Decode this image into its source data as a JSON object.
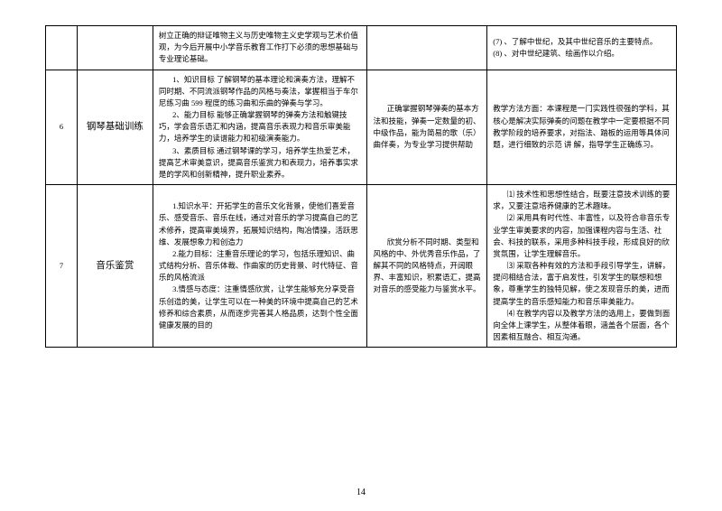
{
  "pageNumber": "14",
  "rows": [
    {
      "num": "",
      "name": "",
      "goal": "树立正确的辩证唯物主义与历史唯物主义史学观与艺术价值观，为今后开展中小学音乐教育工作打下必须的思想基础与专业理论基础。",
      "points": "",
      "method_parts": [
        "(7) 、了解中世纪，及其中世纪音乐的主要特点。",
        "(8) 、对中世纪建筑、绘画作以介绍。"
      ]
    },
    {
      "num": "6",
      "name": "钢琴基础训练",
      "goal_parts": [
        "1、知识目标 了解钢琴的基本理论和演奏方法，理解不同时期、不同流派钢琴作品的风格与奏法，掌握相当于车尔尼练习曲 599 程度的练习曲和乐曲的弹奏与学习。",
        "2、能力目标 能够正确掌握钢琴的弹奏方法和触键技巧，学会音乐语汇和内涵，提高音乐表现力和音乐审美能力，培养学生的读谱能力和初级演奏能力。",
        "3、素质目标 通过钢琴课的学习，培养学生热爱艺术，提高艺术审美意识，提高音乐鉴赏力和表现力，培养事实求是的学风和创新精神，提升职业素养。"
      ],
      "points": "正确掌握钢琴弹奏的基本方法和技能，弹奏一定数量的初、中级作品，能为简易的歌（乐）曲伴奏，为专业学习提供帮助",
      "method": "教学方法方面：本课程是一门实践性很强的学科，其核心是解决实际弹奏的问题在教学中一定要根据不同教学阶段的培养要求，对指法、踏板的运用等具体问题，进行细致的示范 讲 解，指导学生正确练习。"
    },
    {
      "num": "7",
      "name": "音乐鉴赏",
      "goal_parts": [
        "1.知识水平：开拓学生的音乐文化背景，使他们喜爱音乐、感受音乐、音乐在线，通过对音乐的学习提高自己的艺术修养，提高审美境界，拓展知识结构，陶冶情操，活跃思维、发展想象力和创造力",
        "2.能力目标：注重音乐理论的学习，包括乐理知识、曲式结构分析、音乐体裁、作曲家的历史背景、时代特征、音乐的风格流派",
        "3.情感与态度：注重情感欣赏，让学生能够充分享受音乐创造的美，让学生可以在一种美的环境中提高自己的艺术修养和综合素质，从而逐步完善其人格品质，达到个性全面健康发展的目的"
      ],
      "points": "欣赏分析不同时期、类型和风格的中、外优秀音乐作品，了解其不同的风格特点，开阔眼界、丰富知识，积累语汇，提高对音乐的感受能力与鉴赏水平。",
      "method_parts": [
        "⑴ 技术性和思想性结合，既要注意技术训练的要求，又要注意培养健康的艺术趣味。",
        "⑵ 采用具有时代性、丰富性，以及符合非音乐专业学生审美要求的内容，加强课程内容与生活、社会、科技的联系，采用多种科技手段，形成良好的欣赏氛围，让学生理解音乐。",
        "⑶ 采取各种有效的方法和手段引导学生，讲解，提问相结合法，富于启发性，引发学生的联想和想象，尊重学生的独特见解，使之发现音乐的美，进而提高学生的音乐感知能力和音乐审美能力。",
        "⑷ 在教学内容以及教学方法的选用上，要做到面向全体上课学生，从整体着眼，涵盖各个层面，各个因素相互融合、相互沟通。"
      ]
    }
  ]
}
